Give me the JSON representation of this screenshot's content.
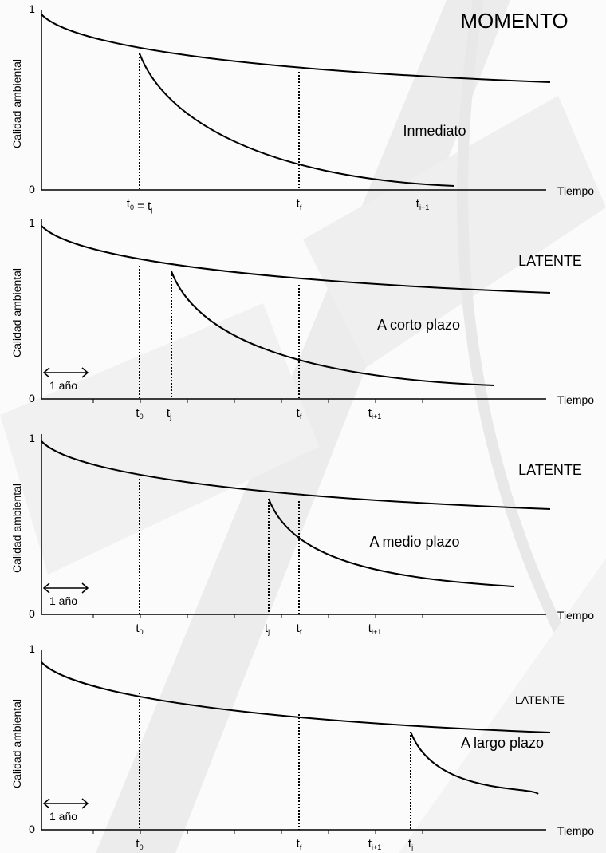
{
  "panels": [
    {
      "title": "MOMENTO",
      "subtitle": "Inmediato",
      "y_label": "Calidad ambiental",
      "y_max": "1",
      "y_min": "0",
      "x_label": "Tiempo",
      "time_labels": [
        [
          {
            "text": "t"
          },
          {
            "sub": "0"
          },
          {
            "text": " = t"
          },
          {
            "sub": "j"
          }
        ],
        [
          {
            "text": "t"
          },
          {
            "sub": "f"
          }
        ],
        [
          {
            "text": "t"
          },
          {
            "sub": "i+1"
          }
        ]
      ]
    },
    {
      "title": "LATENTE",
      "subtitle": "A corto plazo",
      "y_label": "Calidad ambiental",
      "y_max": "1",
      "y_min": "0",
      "x_label": "Tiempo",
      "scale_label": "1 año",
      "time_labels": [
        [
          {
            "text": "t"
          },
          {
            "sub": "0"
          }
        ],
        [
          {
            "text": "t"
          },
          {
            "sub": "j"
          }
        ],
        [
          {
            "text": "t"
          },
          {
            "sub": "f"
          }
        ],
        [
          {
            "text": "t"
          },
          {
            "sub": "i+1"
          }
        ]
      ]
    },
    {
      "title": "LATENTE",
      "subtitle": "A medio plazo",
      "y_label": "Calidad ambiental",
      "y_max": "1",
      "y_min": "0",
      "x_label": "Tiempo",
      "scale_label": "1 año",
      "time_labels": [
        [
          {
            "text": "t"
          },
          {
            "sub": "0"
          }
        ],
        [
          {
            "text": "t"
          },
          {
            "sub": "j"
          }
        ],
        [
          {
            "text": "t"
          },
          {
            "sub": "f"
          }
        ],
        [
          {
            "text": "t"
          },
          {
            "sub": "i+1"
          }
        ]
      ]
    },
    {
      "title": "LATENTE",
      "subtitle": "A largo plazo",
      "y_label": "Calidad ambiental",
      "y_max": "1",
      "y_min": "0",
      "x_label": "Tiempo",
      "scale_label": "1 año",
      "time_labels": [
        [
          {
            "text": "t"
          },
          {
            "sub": "0"
          }
        ],
        [
          {
            "text": "t"
          },
          {
            "sub": "f"
          }
        ],
        [
          {
            "text": "t"
          },
          {
            "sub": "i+1"
          }
        ],
        [
          {
            "text": "t"
          },
          {
            "sub": "j"
          }
        ]
      ]
    }
  ]
}
